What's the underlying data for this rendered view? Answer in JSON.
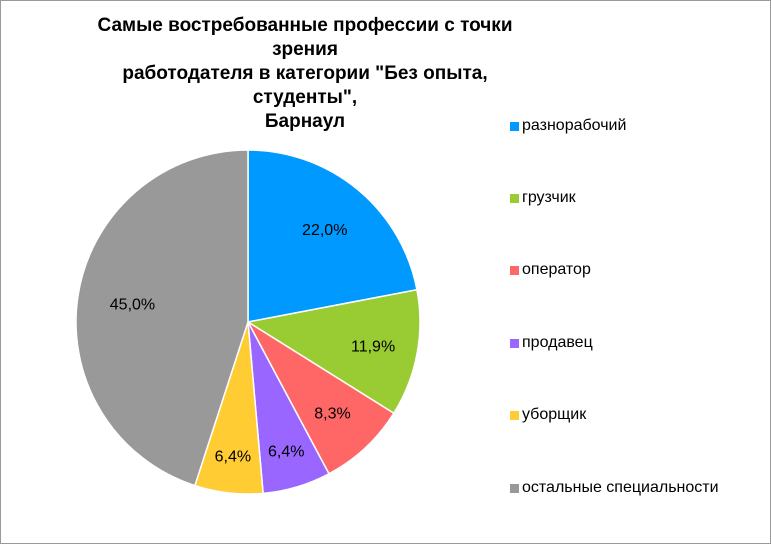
{
  "chart_data": {
    "type": "pie",
    "title": [
      "Самые востребованные профессии с точки зрения",
      "работодателя в категории \"Без опыта, студенты\",",
      "Барнаул"
    ],
    "legend_position": "right",
    "slices": [
      {
        "label": "разнорабочий",
        "value": 22.0,
        "display": "22,0%",
        "color": "#0099FF"
      },
      {
        "label": "грузчик",
        "value": 11.9,
        "display": "11,9%",
        "color": "#99CC33"
      },
      {
        "label": "оператор",
        "value": 8.3,
        "display": "8,3%",
        "color": "#FF6666"
      },
      {
        "label": "продавец",
        "value": 6.4,
        "display": "6,4%",
        "color": "#9966FF"
      },
      {
        "label": "уборщик",
        "value": 6.4,
        "display": "6,4%",
        "color": "#FFCC33"
      },
      {
        "label": "остальные специальности",
        "value": 45.0,
        "display": "45,0%",
        "color": "#999999"
      }
    ]
  }
}
